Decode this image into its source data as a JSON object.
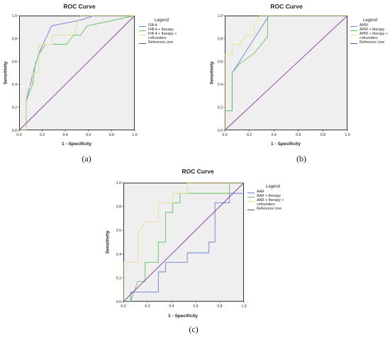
{
  "colors": {
    "blue": "#6f7fd4",
    "green": "#5fc45f",
    "tan": "#e8dc96",
    "purple": "#8b3a9c",
    "plot_bg": "#efefef"
  },
  "chart_data": [
    {
      "type": "line",
      "panel_label": "(a)",
      "title": "ROC Curve",
      "xlabel": "1 - Specificity",
      "ylabel": "Sensitivity",
      "xlim": [
        0,
        1
      ],
      "ylim": [
        0,
        1
      ],
      "xticks": [
        "0.0",
        "0.2",
        "0.4",
        "0.6",
        "0.8",
        "1.0"
      ],
      "yticks": [
        "0.0",
        "0.2",
        "0.4",
        "0.6",
        "0.8",
        "1.0"
      ],
      "grid": false,
      "legend_title": "Legend",
      "legend_position": "right",
      "series": [
        {
          "name": "FIB-4",
          "color_key": "blue",
          "points": [
            [
              0,
              0
            ],
            [
              0.06,
              0
            ],
            [
              0.06,
              0.25
            ],
            [
              0.08,
              0.33
            ],
            [
              0.12,
              0.5
            ],
            [
              0.17,
              0.67
            ],
            [
              0.28,
              0.91
            ],
            [
              0.53,
              0.96
            ],
            [
              0.65,
              1.0
            ],
            [
              1,
              1
            ]
          ]
        },
        {
          "name": "FIB-4 + therapy",
          "color_key": "green",
          "points": [
            [
              0,
              0
            ],
            [
              0.06,
              0
            ],
            [
              0.06,
              0.25
            ],
            [
              0.12,
              0.41
            ],
            [
              0.14,
              0.58
            ],
            [
              0.17,
              0.66
            ],
            [
              0.23,
              0.75
            ],
            [
              0.41,
              0.75
            ],
            [
              0.47,
              0.83
            ],
            [
              0.53,
              0.83
            ],
            [
              0.59,
              0.91
            ],
            [
              1,
              1
            ]
          ]
        },
        {
          "name": "FIB-4 + therapy + cofounders",
          "color_key": "tan",
          "points": [
            [
              0,
              0
            ],
            [
              0.06,
              0
            ],
            [
              0.06,
              0.33
            ],
            [
              0.11,
              0.41
            ],
            [
              0.12,
              0.5
            ],
            [
              0.17,
              0.5
            ],
            [
              0.17,
              0.75
            ],
            [
              0.29,
              0.75
            ],
            [
              0.29,
              0.83
            ],
            [
              0.47,
              0.83
            ],
            [
              0.53,
              1.0
            ],
            [
              1,
              1
            ]
          ]
        },
        {
          "name": "Reference Line",
          "color_key": "purple",
          "points": [
            [
              0,
              0
            ],
            [
              1,
              1
            ]
          ]
        }
      ]
    },
    {
      "type": "line",
      "panel_label": "(b)",
      "title": "ROC Curve",
      "xlabel": "1 - Specificity",
      "ylabel": "Sensitivity",
      "xlim": [
        0,
        1
      ],
      "ylim": [
        0,
        1
      ],
      "xticks": [
        "0.0",
        "0.2",
        "0.4",
        "0.6",
        "0.8",
        "1.0"
      ],
      "yticks": [
        "0.0",
        "0.2",
        "0.4",
        "0.6",
        "0.8",
        "1.0"
      ],
      "grid": false,
      "legend_title": "Legend",
      "legend_position": "right",
      "series": [
        {
          "name": "APRI",
          "color_key": "blue",
          "points": [
            [
              0,
              0
            ],
            [
              0,
              0.17
            ],
            [
              0.06,
              0.17
            ],
            [
              0.06,
              0.5
            ],
            [
              0.36,
              1.0
            ],
            [
              1,
              1
            ]
          ]
        },
        {
          "name": "APRI + therapy",
          "color_key": "green",
          "points": [
            [
              0,
              0
            ],
            [
              0,
              0.17
            ],
            [
              0.06,
              0.17
            ],
            [
              0.06,
              0.5
            ],
            [
              0.12,
              0.58
            ],
            [
              0.24,
              0.67
            ],
            [
              0.35,
              0.82
            ],
            [
              0.35,
              1.0
            ],
            [
              1,
              1
            ]
          ]
        },
        {
          "name": "APRI + therapy + cofounders",
          "color_key": "tan",
          "points": [
            [
              0,
              0
            ],
            [
              0,
              0.66
            ],
            [
              0.06,
              0.66
            ],
            [
              0.06,
              0.75
            ],
            [
              0.12,
              0.75
            ],
            [
              0.18,
              0.83
            ],
            [
              0.24,
              0.83
            ],
            [
              0.24,
              0.91
            ],
            [
              0.29,
              1.0
            ],
            [
              1,
              1
            ]
          ]
        },
        {
          "name": "Reference Line",
          "color_key": "purple",
          "points": [
            [
              0,
              0
            ],
            [
              1,
              1
            ]
          ]
        }
      ]
    },
    {
      "type": "line",
      "panel_label": "(c)",
      "title": "ROC Curve",
      "xlabel": "1 - Specificity",
      "ylabel": "Sensitivity",
      "xlim": [
        0,
        1
      ],
      "ylim": [
        0,
        1
      ],
      "xticks": [
        "0.0",
        "0.2",
        "0.4",
        "0.6",
        "0.8",
        "1.0"
      ],
      "yticks": [
        "0.0",
        "0.2",
        "0.4",
        "0.6",
        "0.8",
        "1.0"
      ],
      "grid": false,
      "legend_title": "Legend",
      "legend_position": "right",
      "series": [
        {
          "name": "AAR",
          "color_key": "blue",
          "points": [
            [
              0,
              0
            ],
            [
              0.06,
              0
            ],
            [
              0.06,
              0.08
            ],
            [
              0.29,
              0.08
            ],
            [
              0.29,
              0.25
            ],
            [
              0.35,
              0.25
            ],
            [
              0.35,
              0.33
            ],
            [
              0.53,
              0.33
            ],
            [
              0.53,
              0.41
            ],
            [
              0.71,
              0.41
            ],
            [
              0.71,
              0.5
            ],
            [
              0.76,
              0.5
            ],
            [
              0.76,
              0.83
            ],
            [
              0.88,
              0.83
            ],
            [
              0.88,
              0.91
            ],
            [
              1,
              0.91
            ]
          ]
        },
        {
          "name": "AAR + therapy",
          "color_key": "green",
          "points": [
            [
              0,
              0
            ],
            [
              0.06,
              0
            ],
            [
              0.12,
              0.17
            ],
            [
              0.18,
              0.17
            ],
            [
              0.18,
              0.33
            ],
            [
              0.29,
              0.33
            ],
            [
              0.29,
              0.5
            ],
            [
              0.35,
              0.5
            ],
            [
              0.35,
              0.75
            ],
            [
              0.41,
              0.75
            ],
            [
              0.41,
              0.83
            ],
            [
              0.47,
              0.83
            ],
            [
              0.47,
              0.91
            ],
            [
              0.88,
              0.91
            ],
            [
              0.88,
              1.0
            ],
            [
              1,
              1
            ]
          ]
        },
        {
          "name": "AAR + therapy + cofounders",
          "color_key": "tan",
          "points": [
            [
              0,
              0
            ],
            [
              0,
              0.33
            ],
            [
              0.12,
              0.33
            ],
            [
              0.12,
              0.58
            ],
            [
              0.18,
              0.67
            ],
            [
              0.29,
              0.67
            ],
            [
              0.29,
              0.83
            ],
            [
              0.41,
              0.83
            ],
            [
              0.41,
              0.91
            ],
            [
              0.53,
              0.91
            ],
            [
              0.53,
              1.0
            ],
            [
              1,
              1
            ]
          ]
        },
        {
          "name": "Reference Line",
          "color_key": "purple",
          "points": [
            [
              0,
              0
            ],
            [
              1,
              1
            ]
          ]
        }
      ]
    }
  ]
}
